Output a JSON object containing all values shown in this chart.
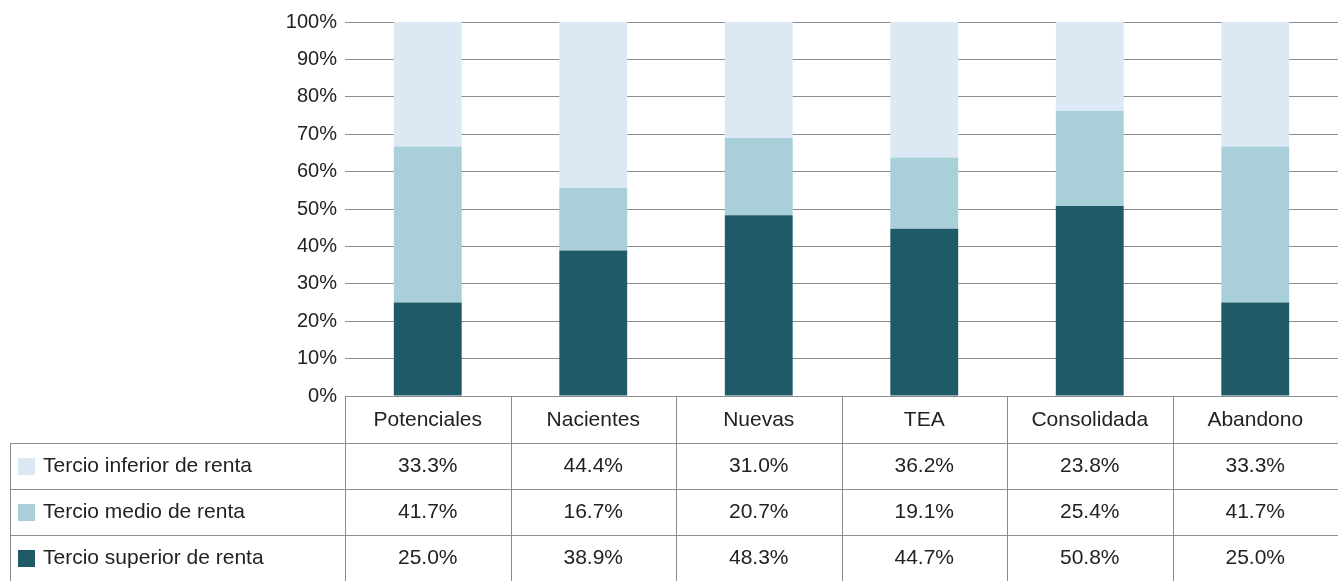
{
  "chart_data": {
    "type": "bar",
    "stacked": true,
    "categories": [
      "Potenciales",
      "Nacientes",
      "Nuevas",
      "TEA",
      "Consolidada",
      "Abandono"
    ],
    "series": [
      {
        "name": "Tercio superior de renta",
        "color": "#1f5a68",
        "values": [
          25.0,
          38.9,
          48.3,
          44.7,
          50.8,
          25.0
        ],
        "value_labels": [
          "25.0%",
          "38.9%",
          "48.3%",
          "44.7%",
          "50.8%",
          "25.0%"
        ]
      },
      {
        "name": "Tercio medio de renta",
        "color": "#a9cfd9",
        "values": [
          41.7,
          16.7,
          20.7,
          19.1,
          25.4,
          41.7
        ],
        "value_labels": [
          "41.7%",
          "16.7%",
          "20.7%",
          "19.1%",
          "25.4%",
          "41.7%"
        ]
      },
      {
        "name": "Tercio inferior de renta",
        "color": "#dce9f5",
        "values": [
          33.3,
          44.4,
          31.0,
          36.2,
          23.8,
          33.3
        ],
        "value_labels": [
          "33.3%",
          "44.4%",
          "31.0%",
          "36.2%",
          "23.8%",
          "33.3%"
        ]
      }
    ],
    "ylim": [
      0,
      100
    ],
    "yticks": [
      {
        "value": 0,
        "label": "0%"
      },
      {
        "value": 10,
        "label": "10%"
      },
      {
        "value": 20,
        "label": "20%"
      },
      {
        "value": 30,
        "label": "30%"
      },
      {
        "value": 40,
        "label": "40%"
      },
      {
        "value": 50,
        "label": "50%"
      },
      {
        "value": 60,
        "label": "60%"
      },
      {
        "value": 70,
        "label": "70%"
      },
      {
        "value": 80,
        "label": "80%"
      },
      {
        "value": 90,
        "label": "90%"
      },
      {
        "value": 100,
        "label": "100%"
      }
    ],
    "grid": "y",
    "legend": "bottom"
  }
}
